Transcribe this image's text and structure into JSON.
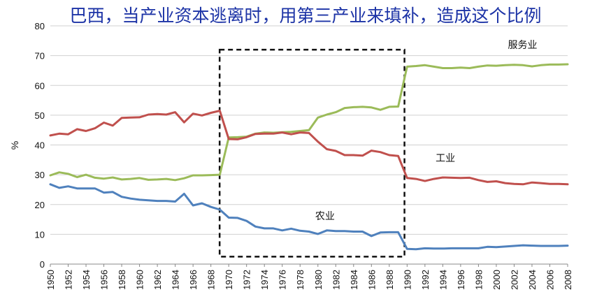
{
  "chart_data": {
    "type": "line",
    "title": "巴西，当产业资本逃离时，用第三产业来填补，造成这个比例",
    "ylabel": "%",
    "xlabel": "",
    "ylim": [
      0,
      80
    ],
    "xlim": [
      1950,
      2008
    ],
    "yticks": [
      "0",
      "10",
      "20",
      "30",
      "40",
      "50",
      "60",
      "70",
      "80"
    ],
    "xticks": [
      "1950",
      "1952",
      "1954",
      "1956",
      "1958",
      "1960",
      "1962",
      "1964",
      "1966",
      "1968",
      "1970",
      "1972",
      "1974",
      "1976",
      "1978",
      "1980",
      "1982",
      "1984",
      "1986",
      "1988",
      "1990",
      "1992",
      "1994",
      "1996",
      "1998",
      "2000",
      "2002",
      "2004",
      "2006",
      "2008"
    ],
    "grid": "horizontal",
    "highlight_box": {
      "x_from": 1970,
      "x_to": 1989,
      "y_from": 2.5,
      "y_to": 72,
      "style": "dashed"
    },
    "x": [
      1950,
      1951,
      1952,
      1953,
      1954,
      1955,
      1956,
      1957,
      1958,
      1959,
      1960,
      1961,
      1962,
      1963,
      1964,
      1965,
      1966,
      1967,
      1968,
      1969,
      1970,
      1971,
      1972,
      1973,
      1974,
      1975,
      1976,
      1977,
      1978,
      1979,
      1980,
      1981,
      1982,
      1983,
      1984,
      1985,
      1986,
      1987,
      1988,
      1989,
      1990,
      1991,
      1992,
      1993,
      1994,
      1995,
      1996,
      1997,
      1998,
      1999,
      2000,
      2001,
      2002,
      2003,
      2004,
      2005,
      2006,
      2007,
      2008
    ],
    "series": [
      {
        "name": "服务业",
        "color": "#9bbb59",
        "values": [
          29.8,
          30.8,
          30.3,
          29.2,
          30.0,
          29.0,
          28.7,
          29.1,
          28.4,
          28.6,
          28.9,
          28.3,
          28.4,
          28.6,
          28.2,
          28.8,
          29.8,
          29.8,
          29.9,
          30.0,
          42.5,
          42.6,
          42.8,
          43.8,
          44.2,
          44.1,
          44.3,
          44.4,
          44.7,
          45.0,
          49.2,
          50.2,
          51.0,
          52.4,
          52.7,
          52.8,
          52.6,
          51.8,
          52.8,
          52.9,
          66.3,
          66.5,
          66.8,
          66.3,
          65.8,
          65.8,
          66.0,
          65.8,
          66.3,
          66.7,
          66.6,
          66.8,
          66.9,
          66.8,
          66.4,
          66.8,
          67.0,
          67.0,
          67.1
        ]
      },
      {
        "name": "工业",
        "color": "#c0504d",
        "values": [
          43.2,
          43.8,
          43.6,
          45.3,
          44.7,
          45.6,
          47.5,
          46.5,
          49.1,
          49.2,
          49.3,
          50.2,
          50.4,
          50.2,
          51.0,
          47.6,
          50.5,
          49.9,
          50.8,
          51.5,
          42.0,
          41.9,
          42.6,
          43.7,
          43.8,
          43.8,
          44.2,
          43.6,
          44.2,
          44.0,
          41.1,
          38.6,
          38.0,
          36.6,
          36.6,
          36.4,
          38.1,
          37.6,
          36.6,
          36.3,
          28.9,
          28.6,
          27.9,
          28.6,
          29.1,
          29.0,
          28.9,
          29.0,
          28.2,
          27.6,
          27.8,
          27.2,
          26.9,
          26.8,
          27.4,
          27.2,
          26.9,
          26.9,
          26.8
        ]
      },
      {
        "name": "农业",
        "color": "#4f81bd",
        "values": [
          26.8,
          25.6,
          26.1,
          25.4,
          25.4,
          25.4,
          24.0,
          24.2,
          22.6,
          22.0,
          21.6,
          21.4,
          21.2,
          21.2,
          21.0,
          23.6,
          19.7,
          20.4,
          19.2,
          18.3,
          15.6,
          15.5,
          14.5,
          12.6,
          12.0,
          12.0,
          11.3,
          11.9,
          11.2,
          10.9,
          10.1,
          11.3,
          11.1,
          11.1,
          10.9,
          10.9,
          9.4,
          10.6,
          10.7,
          10.7,
          5.1,
          5.0,
          5.3,
          5.2,
          5.2,
          5.3,
          5.3,
          5.3,
          5.3,
          5.8,
          5.7,
          5.9,
          6.1,
          6.3,
          6.2,
          6.1,
          6.1,
          6.1,
          6.2
        ]
      }
    ]
  }
}
